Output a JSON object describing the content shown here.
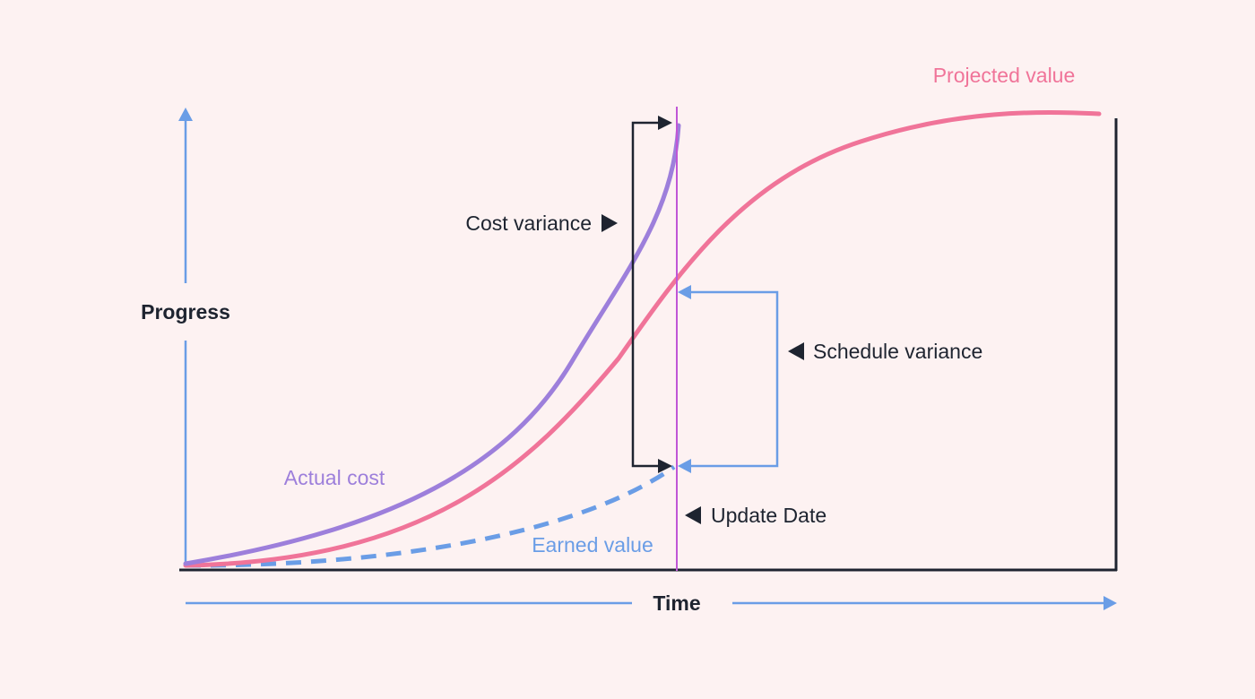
{
  "labels": {
    "projected_value": "Projected value",
    "actual_cost": "Actual cost",
    "earned_value": "Earned value",
    "cost_variance": "Cost variance",
    "schedule_variance": "Schedule variance",
    "update_date": "Update Date",
    "progress_axis": "Progress",
    "time_axis": "Time"
  },
  "colors": {
    "background": "#fdf2f2",
    "projected_value": "#f07499",
    "actual_cost": "#9d7fdb",
    "earned_value": "#6a9de6",
    "update_date_line": "#c056d6",
    "axis_arrows": "#6a9de6",
    "frame": "#1e2430",
    "bracket": "#1e2430",
    "text": "#1e2430"
  },
  "icons": {
    "triangle_right": "triangle-right-icon",
    "triangle_left": "triangle-left-icon",
    "arrow_head": "arrow-head-icon"
  }
}
